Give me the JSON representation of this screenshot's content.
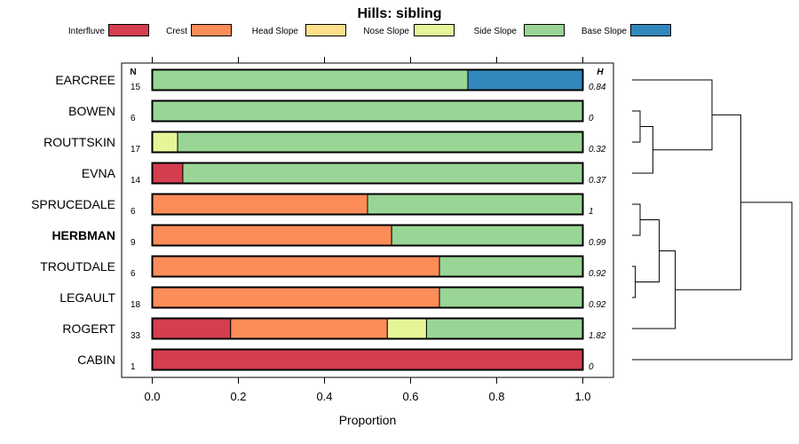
{
  "chart_data": {
    "type": "bar",
    "orientation": "horizontal",
    "stacked": true,
    "title": "Hills: sibling",
    "xlabel": "Proportion",
    "ylabel": "",
    "xlim": [
      0,
      1
    ],
    "xticks": [
      "0.0",
      "0.2",
      "0.4",
      "0.6",
      "0.8",
      "1.0"
    ],
    "n_header": "N",
    "h_header": "H",
    "legend": [
      {
        "name": "Interfluve",
        "color": "#d53e4f"
      },
      {
        "name": "Crest",
        "color": "#fc8d59"
      },
      {
        "name": "Head Slope",
        "color": "#fee08b"
      },
      {
        "name": "Nose Slope",
        "color": "#e6f598"
      },
      {
        "name": "Side Slope",
        "color": "#99d594"
      },
      {
        "name": "Base Slope",
        "color": "#3288bd"
      }
    ],
    "rows": [
      {
        "name": "EARCREE",
        "n": "15",
        "h": "0.84",
        "bold": false,
        "values": [
          0,
          0,
          0,
          0,
          0.733,
          0.267
        ]
      },
      {
        "name": "BOWEN",
        "n": "6",
        "h": "0",
        "bold": false,
        "values": [
          0,
          0,
          0,
          0,
          1.0,
          0
        ]
      },
      {
        "name": "ROUTTSKIN",
        "n": "17",
        "h": "0.32",
        "bold": false,
        "values": [
          0,
          0,
          0,
          0.059,
          0.941,
          0
        ]
      },
      {
        "name": "EVNA",
        "n": "14",
        "h": "0.37",
        "bold": false,
        "values": [
          0.071,
          0,
          0,
          0,
          0.929,
          0
        ]
      },
      {
        "name": "SPRUCEDALE",
        "n": "6",
        "h": "1",
        "bold": false,
        "values": [
          0,
          0.5,
          0,
          0,
          0.5,
          0
        ]
      },
      {
        "name": "HERBMAN",
        "n": "9",
        "h": "0.99",
        "bold": true,
        "values": [
          0,
          0.556,
          0,
          0,
          0.444,
          0
        ]
      },
      {
        "name": "TROUTDALE",
        "n": "6",
        "h": "0.92",
        "bold": false,
        "values": [
          0,
          0.667,
          0,
          0,
          0.333,
          0
        ]
      },
      {
        "name": "LEGAULT",
        "n": "18",
        "h": "0.92",
        "bold": false,
        "values": [
          0,
          0.667,
          0,
          0,
          0.333,
          0
        ]
      },
      {
        "name": "ROGERT",
        "n": "33",
        "h": "1.82",
        "bold": false,
        "values": [
          0.182,
          0.364,
          0,
          0.091,
          0.364,
          0
        ]
      },
      {
        "name": "CABIN",
        "n": "1",
        "h": "0",
        "bold": false,
        "values": [
          1.0,
          0,
          0,
          0,
          0,
          0
        ]
      }
    ],
    "dendrogram": {
      "leaf_order": [
        "EARCREE",
        "BOWEN",
        "ROUTTSKIN",
        "EVNA",
        "SPRUCEDALE",
        "HERBMAN",
        "TROUTDALE",
        "LEGAULT",
        "ROGERT",
        "CABIN"
      ],
      "merges": [
        {
          "a": "BOWEN",
          "b": "ROUTTSKIN",
          "height": 0.05
        },
        {
          "a": "m0",
          "b": "EVNA",
          "height": 0.13
        },
        {
          "a": "EARCREE",
          "b": "m1",
          "height": 0.5
        },
        {
          "a": "TROUTDALE",
          "b": "LEGAULT",
          "height": 0.02
        },
        {
          "a": "SPRUCEDALE",
          "b": "HERBMAN",
          "height": 0.05
        },
        {
          "a": "m4",
          "b": "m3",
          "height": 0.17
        },
        {
          "a": "m5",
          "b": "ROGERT",
          "height": 0.27
        },
        {
          "a": "m2",
          "b": "m6",
          "height": 0.68
        },
        {
          "a": "m7",
          "b": "CABIN",
          "height": 1.0
        }
      ]
    }
  }
}
